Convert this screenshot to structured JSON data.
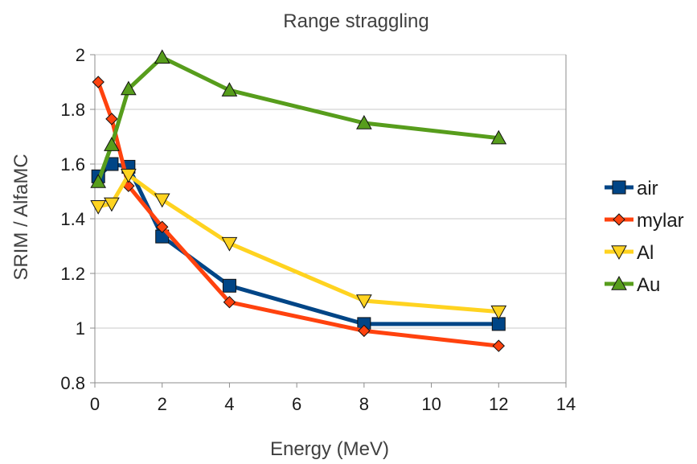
{
  "chart_data": {
    "type": "line",
    "title": "Range straggling",
    "xlabel": "Energy (MeV)",
    "ylabel": "SRIM / AlfaMC",
    "xlim": [
      0,
      14
    ],
    "ylim": [
      0.8,
      2
    ],
    "xticks": [
      0,
      2,
      4,
      6,
      8,
      10,
      12,
      14
    ],
    "yticks": [
      0.8,
      1,
      1.2,
      1.4,
      1.6,
      1.8,
      2
    ],
    "xtick_labels": [
      "0",
      "2",
      "4",
      "6",
      "8",
      "10",
      "12",
      "14"
    ],
    "ytick_labels": [
      "0.8",
      "1",
      "1.2",
      "1.4",
      "1.6",
      "1.8",
      "2"
    ],
    "grid": "horizontal",
    "legend_position": "right",
    "series": [
      {
        "name": "air",
        "color": "#004586",
        "marker": "square",
        "x": [
          0.1,
          0.5,
          1,
          2,
          4,
          8,
          12
        ],
        "y": [
          1.555,
          1.6,
          1.59,
          1.335,
          1.155,
          1.015,
          1.015
        ]
      },
      {
        "name": "mylar",
        "color": "#ff420e",
        "marker": "diamond",
        "x": [
          0.1,
          0.5,
          1,
          2,
          4,
          8,
          12
        ],
        "y": [
          1.9,
          1.765,
          1.52,
          1.37,
          1.095,
          0.99,
          0.935
        ]
      },
      {
        "name": "Al",
        "color": "#ffd320",
        "marker": "triangle-down",
        "x": [
          0.1,
          0.5,
          1,
          2,
          4,
          8,
          12
        ],
        "y": [
          1.445,
          1.455,
          1.56,
          1.47,
          1.31,
          1.1,
          1.06
        ]
      },
      {
        "name": "Au",
        "color": "#579d1c",
        "marker": "triangle-up",
        "x": [
          0.1,
          0.5,
          1,
          2,
          4,
          8,
          12
        ],
        "y": [
          1.535,
          1.67,
          1.875,
          1.99,
          1.87,
          1.75,
          1.695
        ]
      }
    ]
  }
}
